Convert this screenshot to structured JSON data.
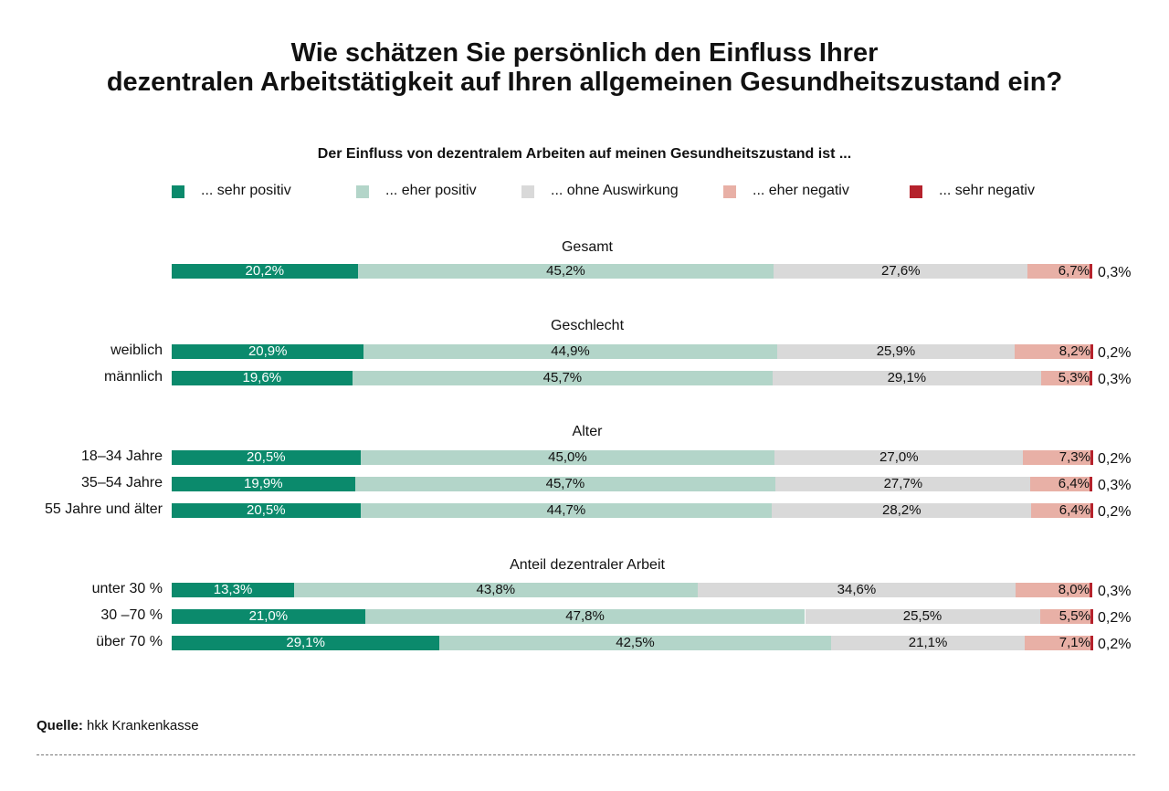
{
  "title_line1": "Wie schätzen Sie persönlich den Einfluss Ihrer",
  "title_line2": "dezentralen Arbeitstätigkeit auf Ihren allgemeinen Gesundheitszustand ein?",
  "subtitle": "Der Einfluss von dezentralem Arbeiten auf meinen Gesundheitszustand ist ...",
  "source_label": "Quelle:",
  "source_text": "hkk Krankenkasse",
  "colors": {
    "sehr_positiv": "#0b8a6c",
    "eher_positiv": "#b3d5c9",
    "ohne_auswirkung": "#d9d9d9",
    "eher_negativ": "#e8b0a6",
    "sehr_negativ": "#b5222c"
  },
  "chart_data": {
    "type": "bar",
    "stacked": true,
    "orientation": "horizontal",
    "unit": "%",
    "legend": [
      "... sehr positiv",
      "... eher positiv",
      "... ohne Auswirkung",
      "... eher negativ",
      "... sehr negativ"
    ],
    "legend_placement": "top",
    "groups": [
      {
        "title": "Gesamt",
        "rows": [
          {
            "label": "",
            "values": [
              20.2,
              45.2,
              27.6,
              6.7,
              0.3
            ],
            "labels": [
              "20,2%",
              "45,2%",
              "27,6%",
              "6,7%",
              "0,3%"
            ]
          }
        ]
      },
      {
        "title": "Geschlecht",
        "rows": [
          {
            "label": "weiblich",
            "values": [
              20.9,
              44.9,
              25.9,
              8.2,
              0.2
            ],
            "labels": [
              "20,9%",
              "44,9%",
              "25,9%",
              "8,2%",
              "0,2%"
            ]
          },
          {
            "label": "männlich",
            "values": [
              19.6,
              45.7,
              29.1,
              5.3,
              0.3
            ],
            "labels": [
              "19,6%",
              "45,7%",
              "29,1%",
              "5,3%",
              "0,3%"
            ]
          }
        ]
      },
      {
        "title": "Alter",
        "rows": [
          {
            "label": "18–34 Jahre",
            "values": [
              20.5,
              45.0,
              27.0,
              7.3,
              0.2
            ],
            "labels": [
              "20,5%",
              "45,0%",
              "27,0%",
              "7,3%",
              "0,2%"
            ]
          },
          {
            "label": "35–54 Jahre",
            "values": [
              19.9,
              45.7,
              27.7,
              6.4,
              0.3
            ],
            "labels": [
              "19,9%",
              "45,7%",
              "27,7%",
              "6,4%",
              "0,3%"
            ]
          },
          {
            "label": "55 Jahre und älter",
            "values": [
              20.5,
              44.7,
              28.2,
              6.4,
              0.2
            ],
            "labels": [
              "20,5%",
              "44,7%",
              "28,2%",
              "6,4%",
              "0,2%"
            ]
          }
        ]
      },
      {
        "title": "Anteil dezentraler Arbeit",
        "rows": [
          {
            "label": "unter 30 %",
            "values": [
              13.3,
              43.8,
              34.6,
              8.0,
              0.3
            ],
            "labels": [
              "13,3%",
              "43,8%",
              "34,6%",
              "8,0%",
              "0,3%"
            ]
          },
          {
            "label": "30 –70 %",
            "values": [
              21.0,
              47.8,
              25.5,
              5.5,
              0.2
            ],
            "labels": [
              "21,0%",
              "47,8%",
              "25,5%",
              "5,5%",
              "0,2%"
            ]
          },
          {
            "label": "über 70 %",
            "values": [
              29.1,
              42.5,
              21.1,
              7.1,
              0.2
            ],
            "labels": [
              "29,1%",
              "42,5%",
              "21,1%",
              "7,1%",
              "0,2%"
            ]
          }
        ]
      }
    ]
  }
}
